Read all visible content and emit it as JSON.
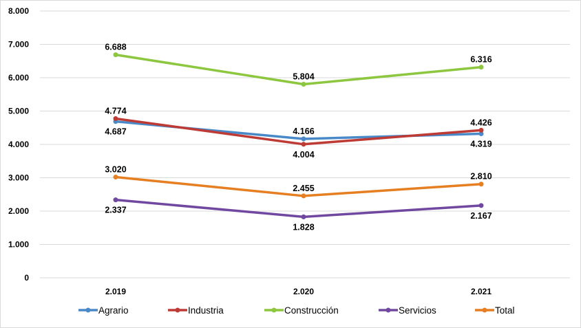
{
  "chart_data": {
    "type": "line",
    "title": "",
    "xlabel": "",
    "ylabel": "",
    "categories": [
      "2.019",
      "2.020",
      "2.021"
    ],
    "ylim": [
      0,
      8000
    ],
    "yticks": [
      0,
      1000,
      2000,
      3000,
      4000,
      5000,
      6000,
      7000,
      8000
    ],
    "ytick_labels": [
      "0",
      "1.000",
      "2.000",
      "3.000",
      "4.000",
      "5.000",
      "6.000",
      "7.000",
      "8.000"
    ],
    "grid": true,
    "legend_position": "bottom",
    "series": [
      {
        "name": "Agrario",
        "color": "#4A89C8",
        "values": [
          4687,
          4166,
          4319
        ],
        "labels": [
          "4.687",
          "4.166",
          "4.319"
        ],
        "label_pos": [
          "below",
          "above",
          "below"
        ]
      },
      {
        "name": "Industria",
        "color": "#BE3A34",
        "values": [
          4774,
          4004,
          4426
        ],
        "labels": [
          "4.774",
          "4.004",
          "4.426"
        ],
        "label_pos": [
          "above",
          "below",
          "above"
        ]
      },
      {
        "name": "Construcción",
        "color": "#8DC63F",
        "values": [
          6688,
          5804,
          6316
        ],
        "labels": [
          "6.688",
          "5.804",
          "6.316"
        ],
        "label_pos": [
          "above",
          "above",
          "above"
        ]
      },
      {
        "name": "Servicios",
        "color": "#7148A0",
        "values": [
          2337,
          1828,
          2167
        ],
        "labels": [
          "2.337",
          "1.828",
          "2.167"
        ],
        "label_pos": [
          "below",
          "below",
          "below"
        ]
      },
      {
        "name": "Total",
        "color": "#E67E22",
        "values": [
          3020,
          2455,
          2810
        ],
        "labels": [
          "3.020",
          "2.455",
          "2.810"
        ],
        "label_pos": [
          "above",
          "above",
          "above"
        ]
      }
    ]
  }
}
